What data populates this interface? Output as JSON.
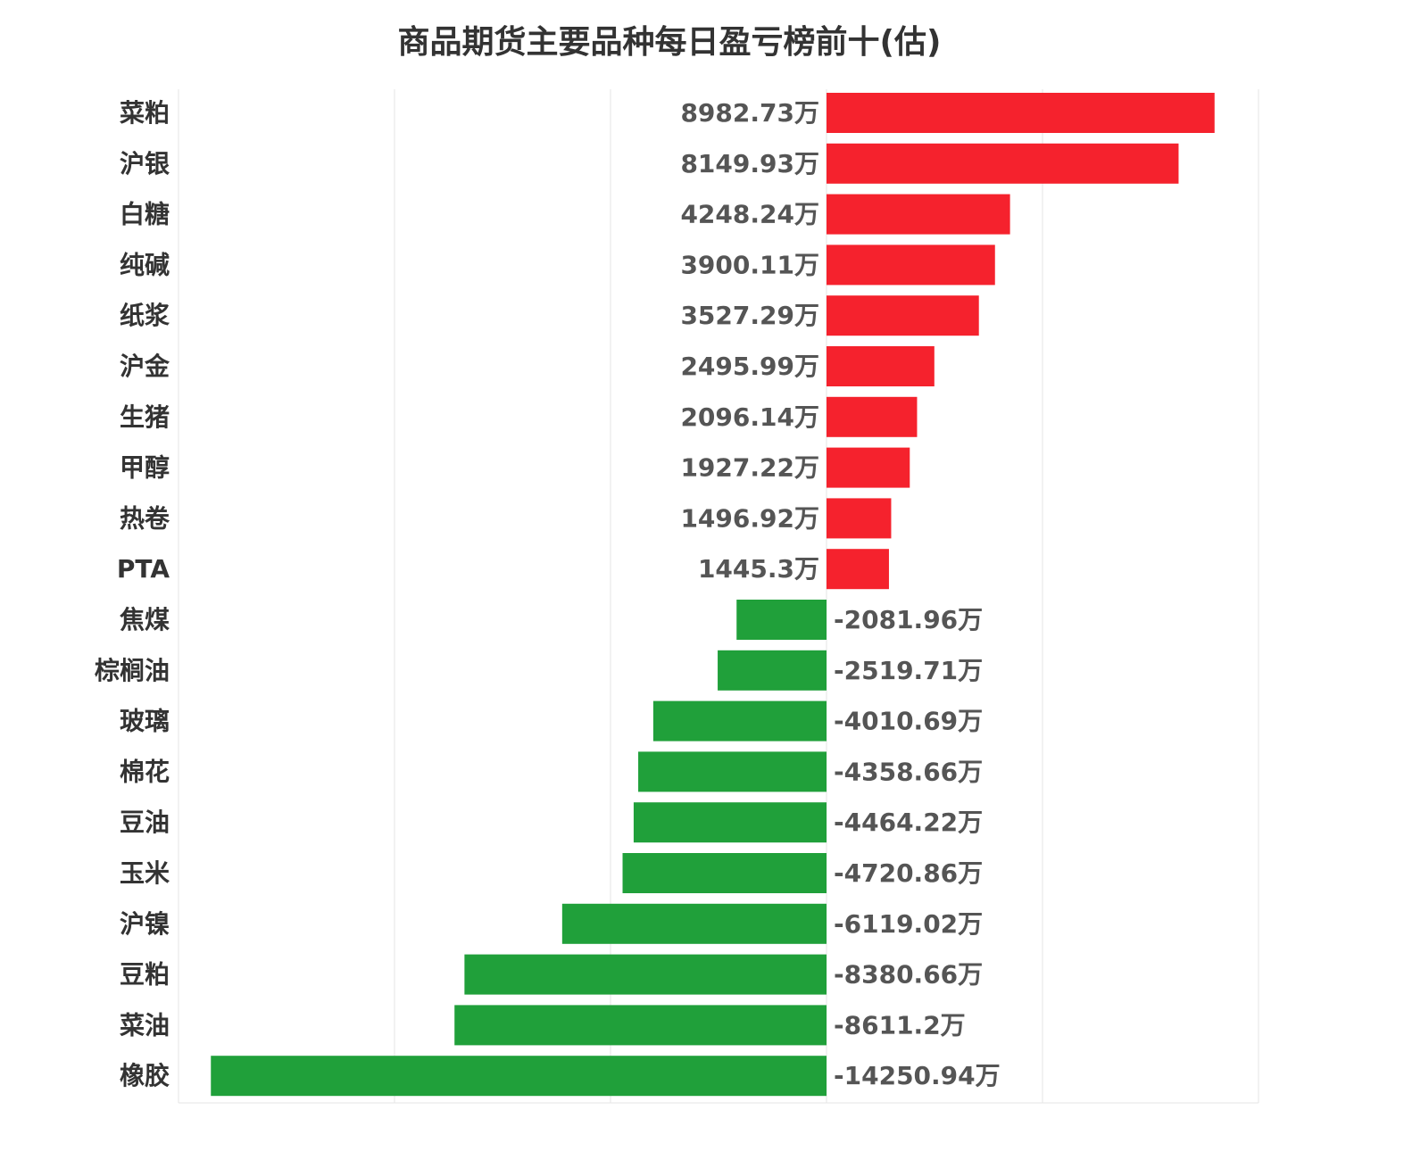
{
  "chart_data": {
    "type": "bar",
    "orientation": "horizontal",
    "title": "商品期货主要品种每日盈亏榜前十(估)",
    "unit_suffix": "万",
    "categories": [
      "菜粕",
      "沪银",
      "白糖",
      "纯碱",
      "纸浆",
      "沪金",
      "生猪",
      "甲醇",
      "热卷",
      "PTA",
      "焦煤",
      "棕榈油",
      "玻璃",
      "棉花",
      "豆油",
      "玉米",
      "沪镍",
      "豆粕",
      "菜油",
      "橡胶"
    ],
    "values": [
      8982.73,
      8149.93,
      4248.24,
      3900.11,
      3527.29,
      2495.99,
      2096.14,
      1927.22,
      1496.92,
      1445.3,
      -2081.96,
      -2519.71,
      -4010.69,
      -4358.66,
      -4464.22,
      -4720.86,
      -6119.02,
      -8380.66,
      -8611.2,
      -14250.94
    ],
    "value_labels": [
      "8982.73万",
      "8149.93万",
      "4248.24万",
      "3900.11万",
      "3527.29万",
      "2495.99万",
      "2096.14万",
      "1927.22万",
      "1496.92万",
      "1445.3万",
      "-2081.96万",
      "-2519.71万",
      "-4010.69万",
      "-4358.66万",
      "-4464.22万",
      "-4720.86万",
      "-6119.02万",
      "-8380.66万",
      "-8611.2万",
      "-14250.94万"
    ],
    "xlim": [
      -15000,
      10000
    ],
    "grid_interval": 5000,
    "grid": true,
    "colors": {
      "positive": "#f5222d",
      "negative": "#20a03a",
      "grid": "#e6e6e6"
    }
  }
}
